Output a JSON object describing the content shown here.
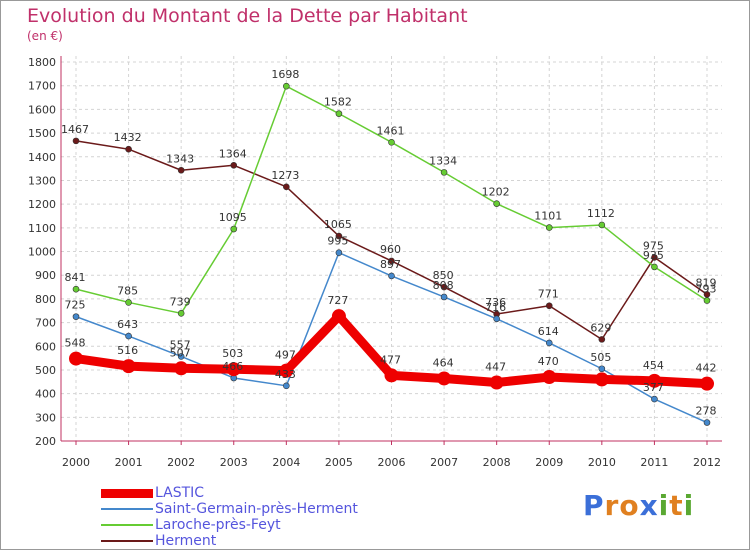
{
  "chart_data": {
    "type": "line",
    "title": "Evolution du Montant de la Dette par Habitant",
    "subtitle": "(en €)",
    "x": [
      "2000",
      "2001",
      "2002",
      "2003",
      "2004",
      "2005",
      "2006",
      "2007",
      "2008",
      "2009",
      "2010",
      "2011",
      "2012"
    ],
    "yticks": [
      "1800",
      "1700",
      "1600",
      "1500",
      "1400",
      "1300",
      "1200",
      "1100",
      "1000",
      "900",
      "800",
      "700",
      "600",
      "500",
      "400",
      "300",
      "200"
    ],
    "ylim": [
      200,
      1800
    ],
    "grid": true,
    "series": [
      {
        "name": "LASTIC",
        "color": "#ee0000",
        "values": [
          548,
          516,
          507,
          503,
          497,
          727,
          477,
          464,
          447,
          470,
          460,
          454,
          442
        ],
        "labels": [
          "548",
          "516",
          "507",
          "503",
          "497",
          "727",
          "477",
          "464",
          "447",
          "470",
          "",
          "454",
          "442"
        ]
      },
      {
        "name": "Saint-Germain-près-Herment",
        "color": "#4488cc",
        "values": [
          725,
          643,
          557,
          466,
          433,
          995,
          897,
          808,
          716,
          614,
          505,
          377,
          278
        ],
        "labels": [
          "725",
          "643",
          "557",
          "466",
          "433",
          "995",
          "897",
          "808",
          "716",
          "614",
          "505",
          "377",
          "278"
        ]
      },
      {
        "name": "Laroche-près-Feyt",
        "color": "#66cc33",
        "values": [
          841,
          785,
          739,
          1095,
          1698,
          1582,
          1461,
          1334,
          1202,
          1101,
          1112,
          935,
          793
        ],
        "labels": [
          "841",
          "785",
          "739",
          "1095",
          "1698",
          "1582",
          "1461",
          "1334",
          "1202",
          "1101",
          "1112",
          "935",
          "793"
        ]
      },
      {
        "name": "Herment",
        "color": "#6b1a1a",
        "values": [
          1467,
          1432,
          1343,
          1364,
          1273,
          1065,
          960,
          850,
          736,
          771,
          629,
          975,
          819
        ],
        "labels": [
          "1467",
          "1432",
          "1343",
          "1364",
          "1273",
          "1065",
          "960",
          "850",
          "736",
          "771",
          "629",
          "975",
          "819"
        ]
      }
    ]
  },
  "legend": [
    "LASTIC",
    "Saint-Germain-près-Herment",
    "Laroche-près-Feyt",
    "Herment"
  ],
  "logo": {
    "text": "Proxiti",
    "letters": [
      "P",
      "r",
      "o",
      "x",
      "i",
      "t",
      "i"
    ],
    "colors": [
      "#3b6fd8",
      "#e08020",
      "#e08020",
      "#3b6fd8",
      "#5aa832",
      "#e08020",
      "#5aa832"
    ]
  }
}
